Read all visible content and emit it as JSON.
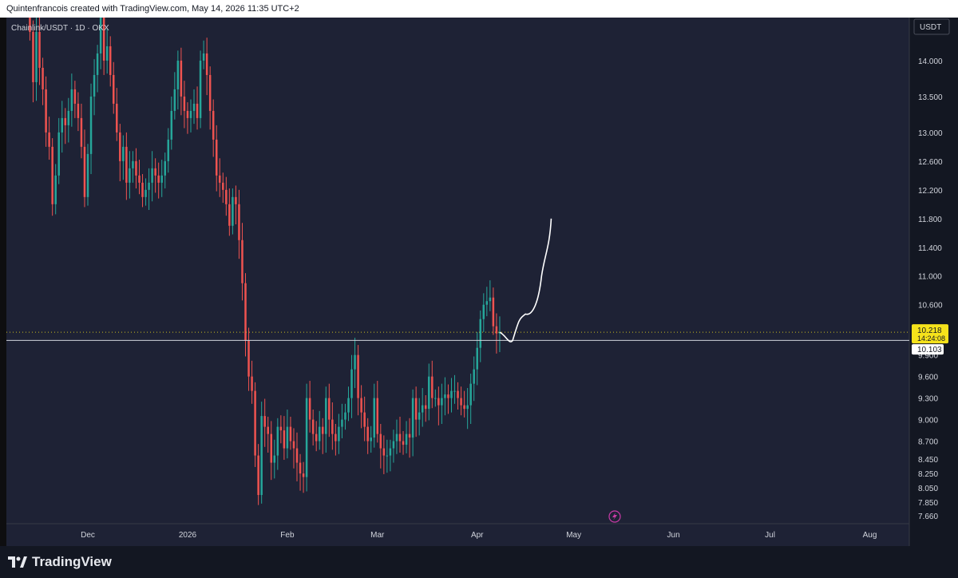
{
  "header": {
    "attribution": "Quintenfrancois created with TradingView.com, May 14, 2026 11:35 UTC+2"
  },
  "footer": {
    "brand": "TradingView"
  },
  "colors": {
    "up": "#26a69a",
    "down": "#ef5350",
    "background": "#1e2235",
    "price_badge": "#f5e21b",
    "drawing": "#ffffff"
  },
  "chart_data": {
    "type": "candlestick",
    "symbol_label": "Chainlink/USDT · 1D · OKX",
    "currency": "USDT",
    "ylim": [
      7.55,
      14.6
    ],
    "y_ticks": [
      14.0,
      13.5,
      13.0,
      12.6,
      12.2,
      11.8,
      11.4,
      11.0,
      10.6,
      9.9,
      9.6,
      9.3,
      9.0,
      8.7,
      8.45,
      8.25,
      8.05,
      7.85,
      7.66
    ],
    "y_tick_labels": [
      "14.000",
      "13.500",
      "13.000",
      "12.600",
      "12.200",
      "11.800",
      "11.400",
      "11.000",
      "10.600",
      "9.900",
      "9.600",
      "9.300",
      "9.000",
      "8.700",
      "8.450",
      "8.250",
      "8.050",
      "7.850",
      "7.660"
    ],
    "x_labels": [
      {
        "label": "Dec",
        "date": "2025-12-01"
      },
      {
        "label": "2026",
        "date": "2026-01-01"
      },
      {
        "label": "Feb",
        "date": "2026-02-01"
      },
      {
        "label": "Mar",
        "date": "2026-03-01"
      },
      {
        "label": "Apr",
        "date": "2026-04-01"
      },
      {
        "label": "May",
        "date": "2026-05-01"
      },
      {
        "label": "Jun",
        "date": "2026-06-01"
      },
      {
        "label": "Jul",
        "date": "2026-07-01"
      },
      {
        "label": "Aug",
        "date": "2026-08-01"
      }
    ],
    "start_date": "2025-11-13",
    "current_price": {
      "value": 10.218,
      "label": "10.218",
      "countdown": "14:24:08"
    },
    "level_line": {
      "value": 10.103,
      "label": "10.103"
    },
    "closes": [
      14.4,
      13.7,
      14.4,
      13.9,
      13.6,
      13.0,
      12.8,
      12.0,
      12.4,
      13.0,
      13.2,
      13.1,
      13.3,
      13.6,
      13.4,
      13.2,
      12.8,
      12.1,
      12.7,
      13.5,
      13.8,
      14.1,
      14.6,
      14.0,
      14.2,
      13.8,
      13.4,
      13.0,
      12.6,
      12.8,
      12.3,
      12.5,
      12.6,
      12.4,
      12.3,
      12.1,
      12.2,
      12.3,
      12.5,
      12.4,
      12.3,
      12.4,
      12.6,
      12.9,
      13.3,
      13.6,
      14.0,
      13.5,
      13.3,
      13.2,
      13.3,
      13.4,
      13.2,
      14.0,
      14.1,
      13.8,
      13.3,
      12.9,
      12.4,
      12.3,
      12.2,
      12.0,
      11.7,
      12.1,
      12.0,
      11.5,
      10.9,
      10.1,
      9.6,
      9.4,
      8.5,
      7.95,
      9.05,
      8.9,
      8.8,
      8.4,
      8.5,
      8.9,
      8.85,
      8.6,
      8.9,
      8.7,
      8.6,
      8.4,
      8.25,
      8.2,
      9.3,
      9.0,
      8.8,
      8.7,
      8.9,
      8.8,
      9.3,
      9.0,
      8.8,
      8.7,
      8.9,
      9.0,
      9.1,
      9.3,
      9.7,
      9.9,
      9.3,
      9.1,
      8.9,
      8.7,
      8.75,
      9.3,
      8.8,
      8.6,
      8.5,
      8.5,
      8.6,
      8.7,
      8.8,
      8.7,
      8.65,
      8.8,
      8.75,
      9.3,
      9.0,
      9.1,
      9.2,
      9.15,
      9.6,
      9.3,
      9.3,
      9.2,
      9.3,
      9.35,
      9.3,
      9.4,
      9.4,
      9.3,
      9.2,
      9.15,
      9.2,
      9.5,
      9.7,
      10.0,
      10.4,
      10.6,
      10.65,
      10.7,
      10.3,
      10.2,
      10.218
    ],
    "projection": [
      [
        10.218,
        10.17
      ],
      [
        10.1,
        10.04
      ],
      [
        10.2,
        10.4
      ],
      [
        10.47,
        10.44
      ],
      [
        10.6,
        11.0
      ],
      [
        11.8,
        null
      ]
    ]
  }
}
